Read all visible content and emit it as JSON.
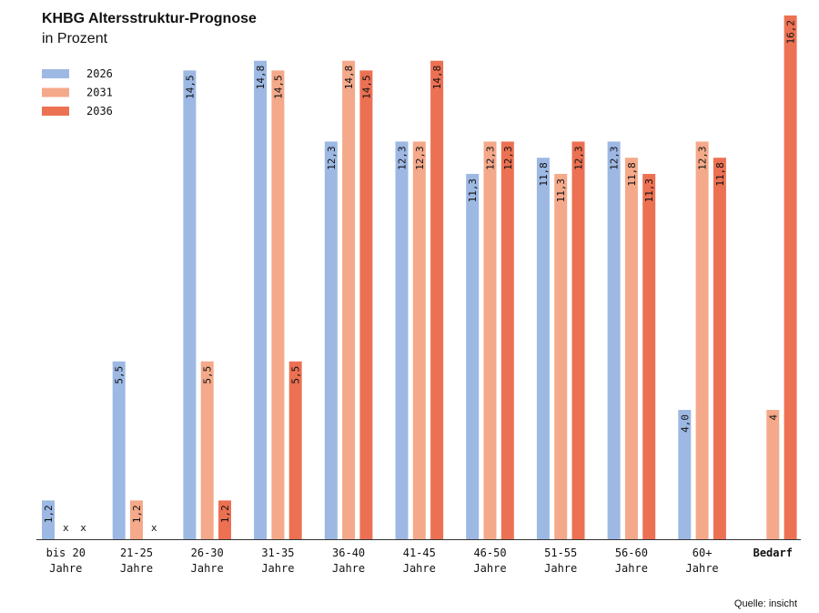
{
  "header": {
    "title": "KHBG Altersstruktur-Prognose",
    "subtitle": "in Prozent"
  },
  "footer": {
    "source": "Quelle: insicht"
  },
  "colors": {
    "2026": "#9db8e3",
    "2031": "#f4a98a",
    "2036": "#ec7153"
  },
  "chart_data": {
    "type": "bar",
    "categories": [
      [
        "bis 20",
        "Jahre"
      ],
      [
        "21-25",
        "Jahre"
      ],
      [
        "26-30",
        "Jahre"
      ],
      [
        "31-35",
        "Jahre"
      ],
      [
        "36-40",
        "Jahre"
      ],
      [
        "41-45",
        "Jahre"
      ],
      [
        "46-50",
        "Jahre"
      ],
      [
        "51-55",
        "Jahre"
      ],
      [
        "56-60",
        "Jahre"
      ],
      [
        "60+",
        "Jahre"
      ],
      [
        "Bedarf"
      ]
    ],
    "series": [
      {
        "name": "2026",
        "values": [
          1.2,
          5.5,
          14.5,
          14.8,
          12.3,
          12.3,
          11.3,
          11.8,
          12.3,
          4.0,
          null
        ],
        "labels": [
          "1,2",
          "5,5",
          "14,5",
          "14,8",
          "12,3",
          "12,3",
          "11,3",
          "11,8",
          "12,3",
          "4,0",
          ""
        ]
      },
      {
        "name": "2031",
        "values": [
          null,
          1.2,
          5.5,
          14.5,
          14.8,
          12.3,
          12.3,
          11.3,
          11.8,
          12.3,
          4
        ],
        "labels": [
          "x",
          "1,2",
          "5,5",
          "14,5",
          "14,8",
          "12,3",
          "12,3",
          "11,3",
          "11,8",
          "12,3",
          "4"
        ]
      },
      {
        "name": "2036",
        "values": [
          null,
          null,
          1.2,
          5.5,
          14.5,
          14.8,
          12.3,
          12.3,
          11.3,
          11.8,
          16.2
        ],
        "labels": [
          "x",
          "x",
          "1,2",
          "5,5",
          "14,5",
          "14,8",
          "12,3",
          "12,3",
          "11,3",
          "11,8",
          "16,2"
        ]
      }
    ],
    "ylim": [
      0,
      16.2
    ],
    "legend_position": "top-left",
    "grid": false
  }
}
